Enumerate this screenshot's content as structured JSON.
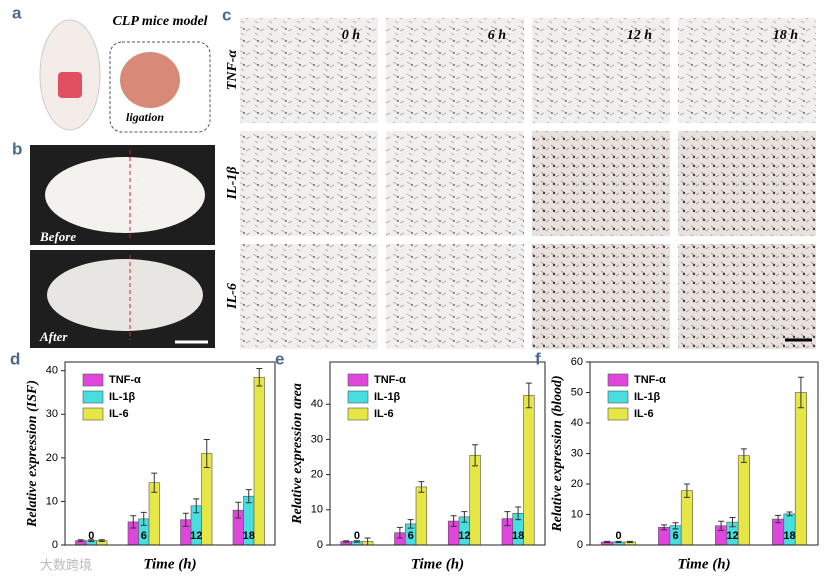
{
  "panels": {
    "a": {
      "label": "a",
      "title": "CLP mice model",
      "note": "ligation"
    },
    "b": {
      "label": "b",
      "before": "Before",
      "after": "After"
    },
    "c": {
      "label": "c",
      "columns": [
        "0 h",
        "6 h",
        "12 h",
        "18 h"
      ],
      "rows": [
        "TNF-α",
        "IL-1β",
        "IL-6"
      ]
    },
    "watermark": "大数跨境"
  },
  "chart_data": [
    {
      "type": "bar",
      "panel": "d",
      "xlabel": "Time (h)",
      "ylabel": "Relative expression (ISF)",
      "categories": [
        "0",
        "6",
        "12",
        "18"
      ],
      "ylim": [
        0,
        42
      ],
      "yticks": [
        0,
        10,
        20,
        30,
        40
      ],
      "series": [
        {
          "name": "TNF-α",
          "color": "#e046dc",
          "values": [
            1,
            5.3,
            5.8,
            8
          ],
          "errors": [
            0.2,
            1.4,
            1.5,
            1.8
          ]
        },
        {
          "name": "IL-1β",
          "color": "#46dede",
          "values": [
            1,
            6,
            9,
            11.2
          ],
          "errors": [
            0.2,
            1.5,
            1.6,
            1.5
          ]
        },
        {
          "name": "IL-6",
          "color": "#e6e646",
          "values": [
            1,
            14.3,
            21,
            38.5
          ],
          "errors": [
            0.2,
            2.2,
            3.2,
            2
          ]
        }
      ]
    },
    {
      "type": "bar",
      "panel": "e",
      "xlabel": "Time (h)",
      "ylabel": "Relative expression area",
      "categories": [
        "0",
        "6",
        "12",
        "18"
      ],
      "ylim": [
        0,
        52
      ],
      "yticks": [
        0,
        10,
        20,
        30,
        40
      ],
      "series": [
        {
          "name": "TNF-α",
          "color": "#e046dc",
          "values": [
            1,
            3.5,
            6.8,
            7.5
          ],
          "errors": [
            0.2,
            1.5,
            1.5,
            2
          ]
        },
        {
          "name": "IL-1β",
          "color": "#46dede",
          "values": [
            1,
            6,
            8,
            9
          ],
          "errors": [
            0.2,
            1.2,
            1.5,
            1.8
          ]
        },
        {
          "name": "IL-6",
          "color": "#e6e646",
          "values": [
            1,
            16.5,
            25.5,
            42.5
          ],
          "errors": [
            1,
            1.5,
            3,
            3.5
          ]
        }
      ]
    },
    {
      "type": "bar",
      "panel": "f",
      "xlabel": "Time (h)",
      "ylabel": "Relative expression (blood)",
      "categories": [
        "0",
        "6",
        "12",
        "18"
      ],
      "ylim": [
        0,
        60
      ],
      "yticks": [
        0,
        10,
        20,
        30,
        40,
        50,
        60
      ],
      "series": [
        {
          "name": "TNF-α",
          "color": "#e046dc",
          "values": [
            1,
            5.8,
            6.3,
            8.5
          ],
          "errors": [
            0.2,
            0.8,
            1.5,
            1.2
          ]
        },
        {
          "name": "IL-1β",
          "color": "#46dede",
          "values": [
            1,
            6.3,
            7.5,
            10.2
          ],
          "errors": [
            0.2,
            1,
            1.5,
            0.6
          ]
        },
        {
          "name": "IL-6",
          "color": "#e6e646",
          "values": [
            1,
            17.8,
            29.3,
            50
          ],
          "errors": [
            0.2,
            2.2,
            2.2,
            5
          ]
        }
      ]
    }
  ]
}
